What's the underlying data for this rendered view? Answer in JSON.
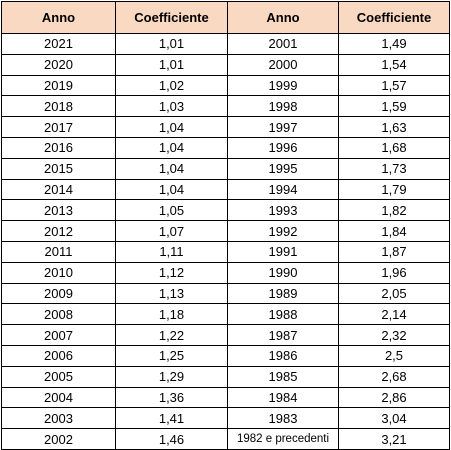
{
  "table": {
    "headers": [
      "Anno",
      "Coefficiente",
      "Anno",
      "Coefficiente"
    ],
    "header_background": "#fad9c3",
    "rows": [
      [
        "2021",
        "1,01",
        "2001",
        "1,49"
      ],
      [
        "2020",
        "1,01",
        "2000",
        "1,54"
      ],
      [
        "2019",
        "1,02",
        "1999",
        "1,57"
      ],
      [
        "2018",
        "1,03",
        "1998",
        "1,59"
      ],
      [
        "2017",
        "1,04",
        "1997",
        "1,63"
      ],
      [
        "2016",
        "1,04",
        "1996",
        "1,68"
      ],
      [
        "2015",
        "1,04",
        "1995",
        "1,73"
      ],
      [
        "2014",
        "1,04",
        "1994",
        "1,79"
      ],
      [
        "2013",
        "1,05",
        "1993",
        "1,82"
      ],
      [
        "2012",
        "1,07",
        "1992",
        "1,84"
      ],
      [
        "2011",
        "1,11",
        "1991",
        "1,87"
      ],
      [
        "2010",
        "1,12",
        "1990",
        "1,96"
      ],
      [
        "2009",
        "1,13",
        "1989",
        "2,05"
      ],
      [
        "2008",
        "1,18",
        "1988",
        "2,14"
      ],
      [
        "2007",
        "1,22",
        "1987",
        "2,32"
      ],
      [
        "2006",
        "1,25",
        "1986",
        "2,5"
      ],
      [
        "2005",
        "1,29",
        "1985",
        "2,68"
      ],
      [
        "2004",
        "1,36",
        "1984",
        "2,86"
      ],
      [
        "2003",
        "1,41",
        "1983",
        "3,04"
      ],
      [
        "2002",
        "1,46",
        "1982 e precedenti",
        "3,21"
      ]
    ]
  }
}
